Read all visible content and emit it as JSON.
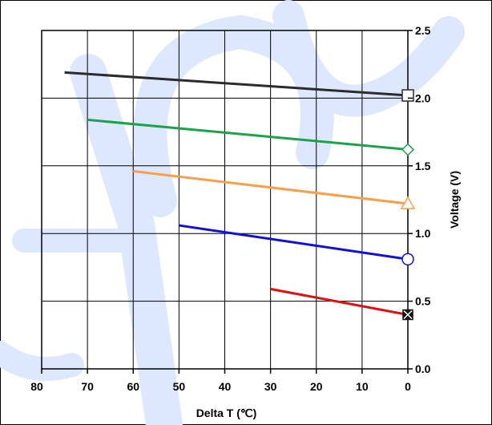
{
  "chart_data": {
    "type": "line",
    "title": "",
    "xlabel": "Delta T (℃)",
    "ylabel": "Voltage (V)",
    "xlim": [
      80,
      0
    ],
    "ylim": [
      0.0,
      2.5
    ],
    "x_ticks": [
      "80",
      "70",
      "60",
      "50",
      "40",
      "30",
      "20",
      "10",
      "0"
    ],
    "y_ticks": [
      "0.0",
      "0.5",
      "1.0",
      "1.5",
      "2.0",
      "2.5"
    ],
    "y_axis_side": "right",
    "grid": true,
    "legend": "none",
    "watermark_color": "#dde8ff",
    "series": [
      {
        "x": [
          75,
          0
        ],
        "y": [
          2.19,
          2.02
        ],
        "color": "#2b2b2b",
        "marker": "square-open"
      },
      {
        "x": [
          70,
          0
        ],
        "y": [
          1.84,
          1.62
        ],
        "color": "#1aa34a",
        "marker": "diamond-open"
      },
      {
        "x": [
          60,
          0
        ],
        "y": [
          1.46,
          1.22
        ],
        "color": "#f5a04a",
        "marker": "triangle-open"
      },
      {
        "x": [
          50,
          0
        ],
        "y": [
          1.06,
          0.81
        ],
        "color": "#1010d8",
        "marker": "circle-open"
      },
      {
        "x": [
          30,
          0
        ],
        "y": [
          0.59,
          0.4
        ],
        "color": "#e01010",
        "marker": "square-x"
      }
    ]
  }
}
